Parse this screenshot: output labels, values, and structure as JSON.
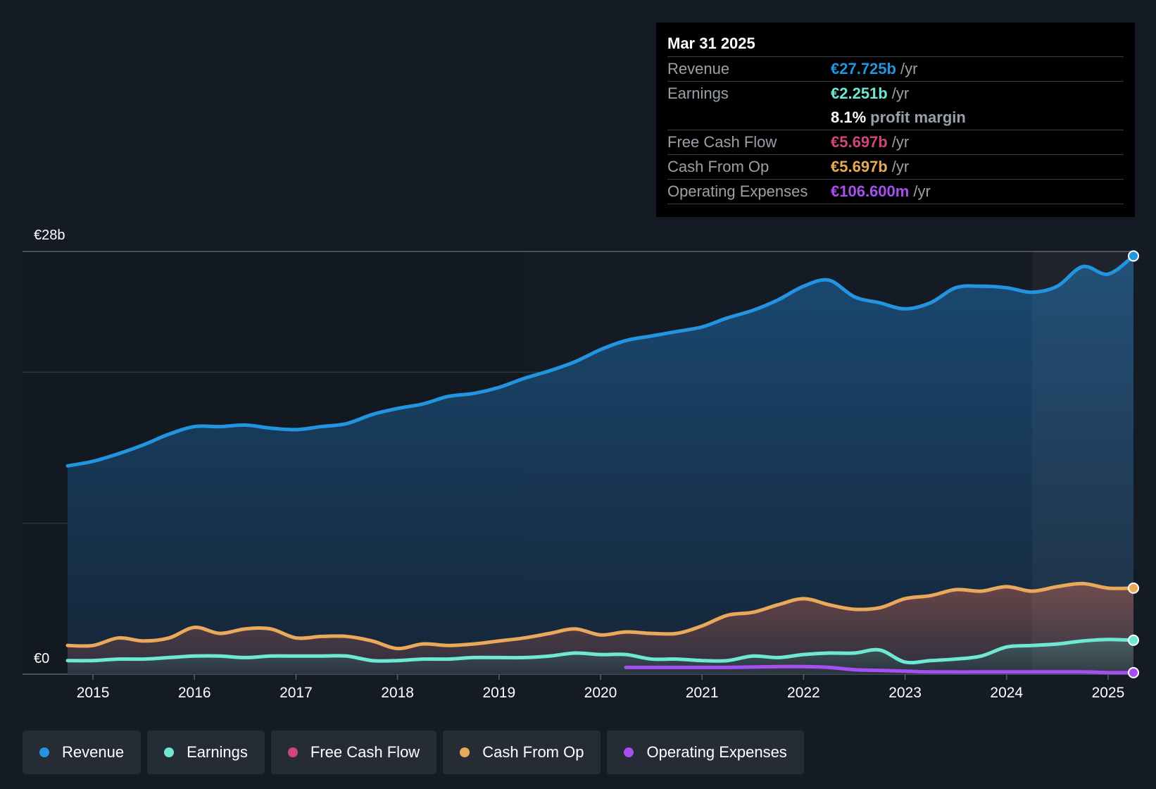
{
  "tooltip": {
    "date": "Mar 31 2025",
    "rows": [
      {
        "label": "Revenue",
        "value": "€27.725b",
        "unit": "/yr",
        "color": "#2394df"
      },
      {
        "label": "Earnings",
        "value": "€2.251b",
        "unit": "/yr",
        "color": "#6ee7d3"
      },
      {
        "label": "",
        "value": "8.1%",
        "unit": "profit margin",
        "color": "#ffffff"
      },
      {
        "label": "Free Cash Flow",
        "value": "€5.697b",
        "unit": "/yr",
        "color": "#d0467a"
      },
      {
        "label": "Cash From Op",
        "value": "€5.697b",
        "unit": "/yr",
        "color": "#e9a85a"
      },
      {
        "label": "Operating Expenses",
        "value": "€106.600m",
        "unit": "/yr",
        "color": "#a74ff0"
      }
    ]
  },
  "legend": [
    {
      "label": "Revenue",
      "color": "#2394df"
    },
    {
      "label": "Earnings",
      "color": "#6ee7d3"
    },
    {
      "label": "Free Cash Flow",
      "color": "#d0467a"
    },
    {
      "label": "Cash From Op",
      "color": "#e9a85a"
    },
    {
      "label": "Operating Expenses",
      "color": "#a74ff0"
    }
  ],
  "chart_data": {
    "type": "area",
    "title": "",
    "xlabel": "",
    "ylabel": "",
    "y_axis_labels": {
      "top": "€28b",
      "bottom": "€0"
    },
    "ylim": [
      0,
      28
    ],
    "xlim": [
      2014.75,
      2025.25
    ],
    "x_ticks": [
      2015,
      2016,
      2017,
      2018,
      2019,
      2020,
      2021,
      2022,
      2023,
      2024,
      2025
    ],
    "x_tick_labels": [
      "2015",
      "2016",
      "2017",
      "2018",
      "2019",
      "2020",
      "2021",
      "2022",
      "2023",
      "2024",
      "2025"
    ],
    "highlight_from": 2024.25,
    "series": [
      {
        "name": "Revenue",
        "color": "#2394df",
        "points": [
          [
            2014.75,
            13.8
          ],
          [
            2015.0,
            14.1
          ],
          [
            2015.25,
            14.6
          ],
          [
            2015.5,
            15.2
          ],
          [
            2015.75,
            15.9
          ],
          [
            2016.0,
            16.4
          ],
          [
            2016.25,
            16.4
          ],
          [
            2016.5,
            16.5
          ],
          [
            2016.75,
            16.3
          ],
          [
            2017.0,
            16.2
          ],
          [
            2017.25,
            16.4
          ],
          [
            2017.5,
            16.6
          ],
          [
            2017.75,
            17.2
          ],
          [
            2018.0,
            17.6
          ],
          [
            2018.25,
            17.9
          ],
          [
            2018.5,
            18.4
          ],
          [
            2018.75,
            18.6
          ],
          [
            2019.0,
            19.0
          ],
          [
            2019.25,
            19.6
          ],
          [
            2019.5,
            20.1
          ],
          [
            2019.75,
            20.7
          ],
          [
            2020.0,
            21.5
          ],
          [
            2020.25,
            22.1
          ],
          [
            2020.5,
            22.4
          ],
          [
            2020.75,
            22.7
          ],
          [
            2021.0,
            23.0
          ],
          [
            2021.25,
            23.6
          ],
          [
            2021.5,
            24.1
          ],
          [
            2021.75,
            24.8
          ],
          [
            2022.0,
            25.7
          ],
          [
            2022.25,
            26.1
          ],
          [
            2022.5,
            25.0
          ],
          [
            2022.75,
            24.6
          ],
          [
            2023.0,
            24.2
          ],
          [
            2023.25,
            24.6
          ],
          [
            2023.5,
            25.6
          ],
          [
            2023.75,
            25.7
          ],
          [
            2024.0,
            25.6
          ],
          [
            2024.25,
            25.3
          ],
          [
            2024.5,
            25.7
          ],
          [
            2024.75,
            27.0
          ],
          [
            2025.0,
            26.5
          ],
          [
            2025.25,
            27.7
          ]
        ]
      },
      {
        "name": "Cash From Op",
        "color": "#e9a85a",
        "points": [
          [
            2014.75,
            1.9
          ],
          [
            2015.0,
            1.9
          ],
          [
            2015.25,
            2.4
          ],
          [
            2015.5,
            2.2
          ],
          [
            2015.75,
            2.4
          ],
          [
            2016.0,
            3.1
          ],
          [
            2016.25,
            2.7
          ],
          [
            2016.5,
            3.0
          ],
          [
            2016.75,
            3.0
          ],
          [
            2017.0,
            2.4
          ],
          [
            2017.25,
            2.5
          ],
          [
            2017.5,
            2.5
          ],
          [
            2017.75,
            2.2
          ],
          [
            2018.0,
            1.7
          ],
          [
            2018.25,
            2.0
          ],
          [
            2018.5,
            1.9
          ],
          [
            2018.75,
            2.0
          ],
          [
            2019.0,
            2.2
          ],
          [
            2019.25,
            2.4
          ],
          [
            2019.5,
            2.7
          ],
          [
            2019.75,
            3.0
          ],
          [
            2020.0,
            2.6
          ],
          [
            2020.25,
            2.8
          ],
          [
            2020.5,
            2.7
          ],
          [
            2020.75,
            2.7
          ],
          [
            2021.0,
            3.2
          ],
          [
            2021.25,
            3.9
          ],
          [
            2021.5,
            4.1
          ],
          [
            2021.75,
            4.6
          ],
          [
            2022.0,
            5.0
          ],
          [
            2022.25,
            4.6
          ],
          [
            2022.5,
            4.3
          ],
          [
            2022.75,
            4.4
          ],
          [
            2023.0,
            5.0
          ],
          [
            2023.25,
            5.2
          ],
          [
            2023.5,
            5.6
          ],
          [
            2023.75,
            5.5
          ],
          [
            2024.0,
            5.8
          ],
          [
            2024.25,
            5.5
          ],
          [
            2024.5,
            5.8
          ],
          [
            2024.75,
            6.0
          ],
          [
            2025.0,
            5.7
          ],
          [
            2025.25,
            5.7
          ]
        ]
      },
      {
        "name": "Earnings",
        "color": "#6ee7d3",
        "points": [
          [
            2014.75,
            0.9
          ],
          [
            2015.0,
            0.9
          ],
          [
            2015.25,
            1.0
          ],
          [
            2015.5,
            1.0
          ],
          [
            2015.75,
            1.1
          ],
          [
            2016.0,
            1.2
          ],
          [
            2016.25,
            1.2
          ],
          [
            2016.5,
            1.1
          ],
          [
            2016.75,
            1.2
          ],
          [
            2017.0,
            1.2
          ],
          [
            2017.25,
            1.2
          ],
          [
            2017.5,
            1.2
          ],
          [
            2017.75,
            0.9
          ],
          [
            2018.0,
            0.9
          ],
          [
            2018.25,
            1.0
          ],
          [
            2018.5,
            1.0
          ],
          [
            2018.75,
            1.1
          ],
          [
            2019.0,
            1.1
          ],
          [
            2019.25,
            1.1
          ],
          [
            2019.5,
            1.2
          ],
          [
            2019.75,
            1.4
          ],
          [
            2020.0,
            1.3
          ],
          [
            2020.25,
            1.3
          ],
          [
            2020.5,
            1.0
          ],
          [
            2020.75,
            1.0
          ],
          [
            2021.0,
            0.9
          ],
          [
            2021.25,
            0.9
          ],
          [
            2021.5,
            1.2
          ],
          [
            2021.75,
            1.1
          ],
          [
            2022.0,
            1.3
          ],
          [
            2022.25,
            1.4
          ],
          [
            2022.5,
            1.4
          ],
          [
            2022.75,
            1.6
          ],
          [
            2023.0,
            0.8
          ],
          [
            2023.25,
            0.9
          ],
          [
            2023.5,
            1.0
          ],
          [
            2023.75,
            1.2
          ],
          [
            2024.0,
            1.8
          ],
          [
            2024.25,
            1.9
          ],
          [
            2024.5,
            2.0
          ],
          [
            2024.75,
            2.2
          ],
          [
            2025.0,
            2.3
          ],
          [
            2025.25,
            2.25
          ]
        ]
      },
      {
        "name": "Operating Expenses",
        "color": "#a74ff0",
        "points": [
          [
            2020.25,
            0.45
          ],
          [
            2020.75,
            0.45
          ],
          [
            2021.25,
            0.45
          ],
          [
            2021.75,
            0.5
          ],
          [
            2022.0,
            0.5
          ],
          [
            2022.25,
            0.45
          ],
          [
            2022.5,
            0.3
          ],
          [
            2022.75,
            0.25
          ],
          [
            2023.0,
            0.2
          ],
          [
            2023.25,
            0.15
          ],
          [
            2023.75,
            0.15
          ],
          [
            2024.25,
            0.15
          ],
          [
            2024.75,
            0.15
          ],
          [
            2025.0,
            0.1
          ],
          [
            2025.25,
            0.1
          ]
        ]
      }
    ]
  }
}
